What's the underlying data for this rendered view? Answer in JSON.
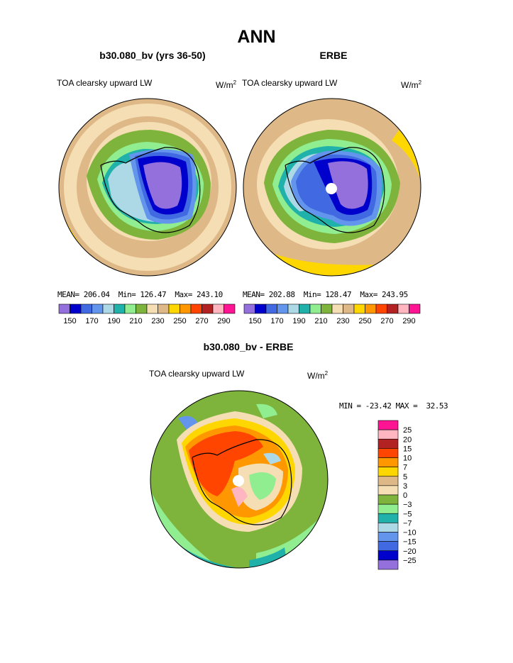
{
  "header": {
    "title": "ANN"
  },
  "panel_left": {
    "title": "b30.080_bv (yrs 36-50)",
    "variable": "TOA clearsky upward LW",
    "units_base": "W/m",
    "units_exp": "2",
    "stats": {
      "mean_label": "MEAN=",
      "mean": "206.04",
      "min_label": "Min=",
      "min": "126.47",
      "max_label": "Max=",
      "max": "243.10"
    }
  },
  "panel_right": {
    "title": "ERBE",
    "variable": "TOA clearsky upward LW",
    "units_base": "W/m",
    "units_exp": "2",
    "stats": {
      "mean_label": "MEAN=",
      "mean": "202.88",
      "min_label": "Min=",
      "min": "128.47",
      "max_label": "Max=",
      "max": "243.95"
    }
  },
  "top_colorbar": {
    "colors": [
      "#9370db",
      "#0000cd",
      "#4169e1",
      "#6495ed",
      "#add8e6",
      "#20b2aa",
      "#90ee90",
      "#7fb43c",
      "#f5deb3",
      "#deb887",
      "#ffd700",
      "#ff9800",
      "#ff4500",
      "#b22222",
      "#ffb6c1",
      "#ff1493"
    ],
    "labels": [
      "150",
      "170",
      "190",
      "210",
      "230",
      "250",
      "270",
      "290"
    ]
  },
  "panel_diff": {
    "title": "b30.080_bv - ERBE",
    "variable": "TOA clearsky upward LW",
    "units_base": "W/m",
    "units_exp": "2",
    "stats_text": "MIN = -23.42 MAX =  32.53"
  },
  "diff_colorbar": {
    "colors": [
      "#ff1493",
      "#ffb6c1",
      "#b22222",
      "#ff4500",
      "#ff9800",
      "#ffd700",
      "#deb887",
      "#f5deb3",
      "#7fb43c",
      "#90ee90",
      "#20b2aa",
      "#add8e6",
      "#6495ed",
      "#4169e1",
      "#0000cd",
      "#9370db"
    ],
    "labels": [
      "25",
      "20",
      "15",
      "10",
      "7",
      "5",
      "3",
      "0",
      "−3",
      "−5",
      "−7",
      "−10",
      "−15",
      "−20",
      "−25"
    ]
  }
}
